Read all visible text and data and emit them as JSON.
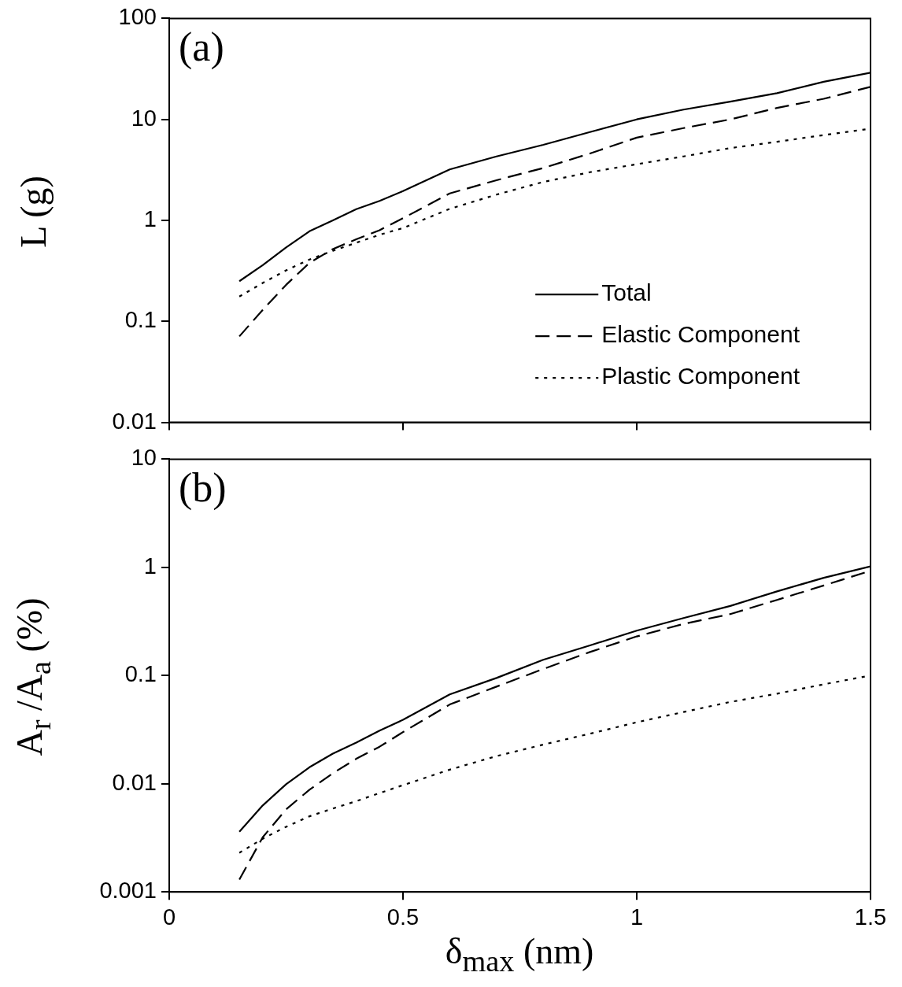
{
  "chart_data": [
    {
      "type": "line",
      "ylabel": "L (g)",
      "log": "y",
      "legend": "bottom right",
      "tick_labels": "y",
      "x": [
        0.15,
        0.2,
        0.25,
        0.3,
        0.35,
        0.4,
        0.45,
        0.5,
        0.6,
        0.7,
        0.8,
        0.9,
        1.0,
        1.1,
        1.2,
        1.3,
        1.4,
        1.5
      ],
      "xlim": [
        0,
        1.5
      ],
      "xticks": [
        0,
        0.5,
        1,
        1.5
      ],
      "ylim": [
        0.01,
        100
      ],
      "yticks": [
        0.01,
        0.1,
        1,
        10,
        100
      ],
      "annotations": [
        "(a)"
      ],
      "series": [
        {
          "name": "Total",
          "color": "#000000",
          "line_style": "solid",
          "values": [
            0.25,
            0.36,
            0.54,
            0.78,
            1.0,
            1.29,
            1.56,
            1.95,
            3.2,
            4.3,
            5.6,
            7.5,
            10,
            12.5,
            15,
            18.2,
            23.6,
            29
          ]
        },
        {
          "name": "Elastic Component",
          "color": "#000000",
          "line_style": "dashed",
          "values": [
            0.071,
            0.13,
            0.23,
            0.38,
            0.52,
            0.65,
            0.8,
            1.05,
            1.85,
            2.5,
            3.3,
            4.6,
            6.6,
            8.2,
            10,
            13,
            16,
            21
          ]
        },
        {
          "name": "Plastic Component",
          "color": "#000000",
          "line_style": "dotted",
          "values": [
            0.176,
            0.24,
            0.32,
            0.41,
            0.5,
            0.6,
            0.72,
            0.84,
            1.3,
            1.8,
            2.4,
            3.0,
            3.6,
            4.3,
            5.2,
            6.0,
            7.0,
            8.1
          ]
        }
      ]
    },
    {
      "type": "line",
      "xlabel": "δ$_{max}$ (nm)",
      "ylabel": "A$_{r}$ /A$_{a}$ (%)",
      "log": "y",
      "x": [
        0.15,
        0.2,
        0.25,
        0.3,
        0.35,
        0.4,
        0.45,
        0.5,
        0.6,
        0.7,
        0.8,
        0.9,
        1.0,
        1.1,
        1.2,
        1.3,
        1.4,
        1.5
      ],
      "xlim": [
        0,
        1.5
      ],
      "xticks": [
        0,
        0.5,
        1,
        1.5
      ],
      "ylim": [
        0.001,
        10
      ],
      "yticks": [
        0.001,
        0.01,
        0.1,
        1,
        10
      ],
      "annotations": [
        "(b)"
      ],
      "series": [
        {
          "color": "#000000",
          "line_style": "solid",
          "values": [
            0.0036,
            0.0063,
            0.0099,
            0.0142,
            0.019,
            0.024,
            0.031,
            0.039,
            0.067,
            0.095,
            0.14,
            0.19,
            0.26,
            0.34,
            0.44,
            0.6,
            0.8,
            1.02
          ]
        },
        {
          "color": "#000000",
          "line_style": "dashed",
          "values": [
            0.0013,
            0.0032,
            0.0058,
            0.0088,
            0.0125,
            0.017,
            0.022,
            0.03,
            0.054,
            0.079,
            0.115,
            0.165,
            0.23,
            0.3,
            0.37,
            0.5,
            0.68,
            0.93
          ]
        },
        {
          "color": "#000000",
          "line_style": "dotted",
          "values": [
            0.0023,
            0.0031,
            0.004,
            0.005,
            0.0059,
            0.0069,
            0.0082,
            0.0097,
            0.0135,
            0.018,
            0.023,
            0.029,
            0.037,
            0.046,
            0.057,
            0.068,
            0.083,
            0.1
          ]
        }
      ]
    }
  ]
}
